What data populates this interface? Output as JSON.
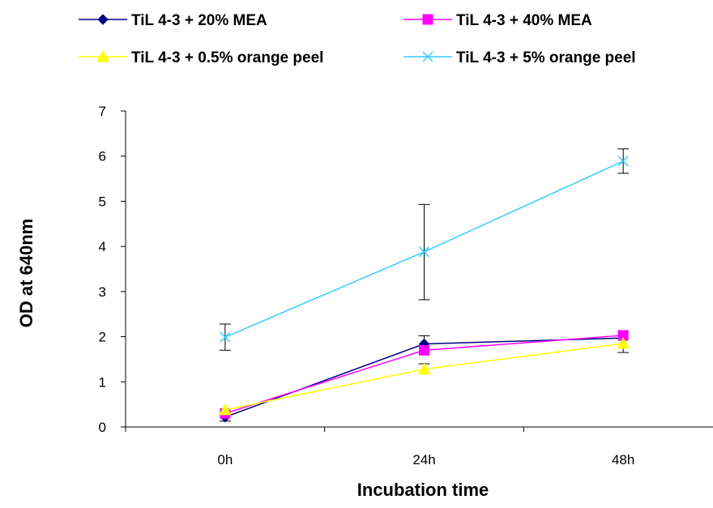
{
  "chart_data": {
    "type": "line",
    "title": "",
    "xlabel": "Incubation time",
    "ylabel": "OD at 640nm",
    "categories": [
      "0h",
      "24h",
      "48h"
    ],
    "ylim": [
      0,
      7
    ],
    "yticks": [
      "0",
      "1",
      "2",
      "3",
      "4",
      "5",
      "6",
      "7"
    ],
    "grid": false,
    "legend_position": "top",
    "series": [
      {
        "name": "TiL 4-3 + 20% MEA",
        "values": [
          0.22,
          1.84,
          1.97
        ],
        "color": "#000080",
        "marker": "diamond"
      },
      {
        "name": "TiL 4-3 + 40% MEA",
        "values": [
          0.3,
          1.7,
          2.03
        ],
        "color": "#ff00ff",
        "marker": "square"
      },
      {
        "name": "TiL 4-3 + 0.5% orange peel",
        "values": [
          0.38,
          1.28,
          1.85
        ],
        "color": "#ffff00",
        "marker": "triangle"
      },
      {
        "name": "TiL 4-3 + 5% orange peel",
        "values": [
          1.99,
          3.88,
          5.89
        ],
        "color": "#33ccff",
        "marker": "x"
      }
    ],
    "error_bars": [
      {
        "series": "TiL 4-3 + 20% MEA",
        "category": "0h",
        "low": 0.13,
        "high": 0.3
      },
      {
        "series": "TiL 4-3 + 20% MEA",
        "category": "24h",
        "low": 1.66,
        "high": 2.02
      },
      {
        "series": "TiL 4-3 + 20% MEA",
        "category": "48h",
        "low": 1.65,
        "high": 2.1
      },
      {
        "series": "TiL 4-3 + 0.5% orange peel",
        "category": "24h",
        "low": 1.18,
        "high": 1.4
      },
      {
        "series": "TiL 4-3 + 5% orange peel",
        "category": "0h",
        "low": 1.7,
        "high": 2.28
      },
      {
        "series": "TiL 4-3 + 5% orange peel",
        "category": "24h",
        "low": 2.82,
        "high": 4.93
      },
      {
        "series": "TiL 4-3 + 5% orange peel",
        "category": "48h",
        "low": 5.62,
        "high": 6.16
      }
    ]
  }
}
